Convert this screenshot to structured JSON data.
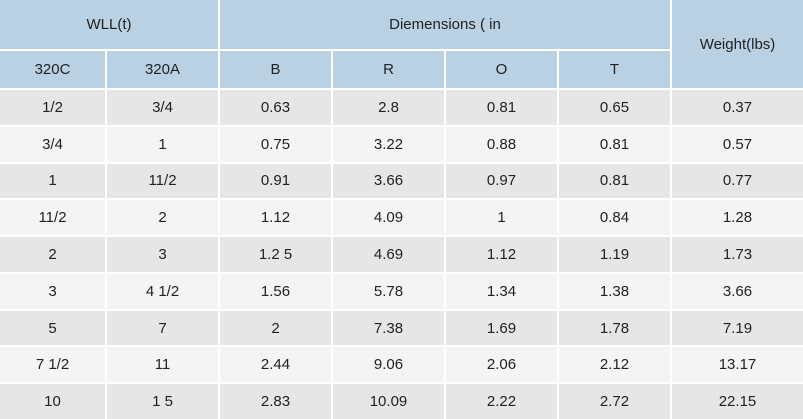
{
  "header": {
    "wll": "WLL(t)",
    "dimensions": "Diemensions ( in",
    "weight": "Weight(lbs)",
    "columns": [
      "320C",
      "320A",
      "B",
      "R",
      "O",
      "T"
    ]
  },
  "table": {
    "rows": [
      [
        "1/2",
        "3/4",
        "0.63",
        "2.8",
        "0.81",
        "0.65",
        "0.37"
      ],
      [
        "3/4",
        "1",
        "0.75",
        "3.22",
        "0.88",
        "0.81",
        "0.57"
      ],
      [
        "1",
        "11/2",
        "0.91",
        "3.66",
        "0.97",
        "0.81",
        "0.77"
      ],
      [
        "11/2",
        "2",
        "1.12",
        "4.09",
        "1",
        "0.84",
        "1.28"
      ],
      [
        "2",
        "3",
        "1.2 5",
        "4.69",
        "1.12",
        "1.19",
        "1.73"
      ],
      [
        "3",
        "4 1/2",
        "1.56",
        "5.78",
        "1.34",
        "1.38",
        "3.66"
      ],
      [
        "5",
        "7",
        "2",
        "7.38",
        "1.69",
        "1.78",
        "7.19"
      ],
      [
        "7 1/2",
        "11",
        "2.44",
        "9.06",
        "2.06",
        "2.12",
        "13.17"
      ],
      [
        "10",
        "1 5",
        "2.83",
        "10.09",
        "2.22",
        "2.72",
        "22.15"
      ]
    ]
  }
}
